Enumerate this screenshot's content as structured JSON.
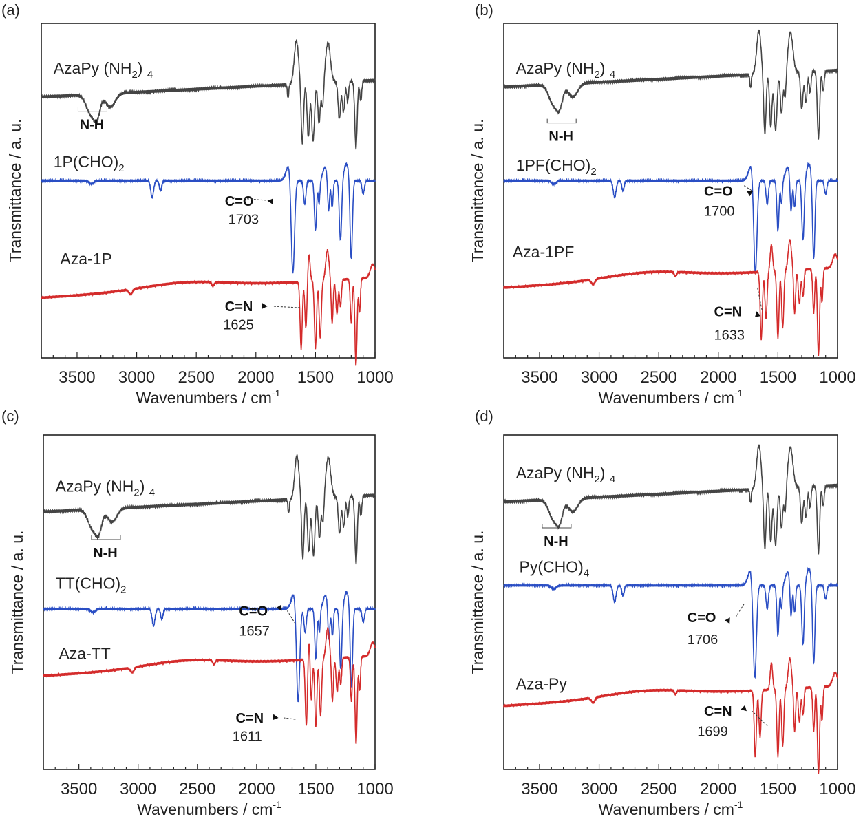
{
  "chart_data": [
    {
      "type": "line",
      "panel_label": "(a)",
      "xlabel": "Wavenumbers / cm",
      "xlabel_sup": "-1",
      "ylabel": "Transmittance / a. u.",
      "xlim": [
        3800,
        1000
      ],
      "xticks": [
        "3500",
        "3000",
        "2500",
        "2000",
        "1500",
        "1000"
      ],
      "series": [
        {
          "name": "AzaPy (NH2)4",
          "color": "#444444",
          "baseline": 0.19,
          "points": [
            [
              3800,
              0.19
            ],
            [
              3550,
              0.2
            ],
            [
              3400,
              0.25
            ],
            [
              3350,
              0.3
            ],
            [
              3300,
              0.24
            ],
            [
              3250,
              0.27
            ],
            [
              3150,
              0.22
            ],
            [
              3000,
              0.2
            ],
            [
              2500,
              0.19
            ],
            [
              2000,
              0.18
            ],
            [
              1800,
              0.17
            ],
            [
              1720,
              0.2
            ],
            [
              1690,
              0.08
            ],
            [
              1660,
              0.03
            ],
            [
              1640,
              0.1
            ],
            [
              1620,
              0.35
            ],
            [
              1600,
              0.15
            ],
            [
              1580,
              0.3
            ],
            [
              1560,
              0.15
            ],
            [
              1540,
              0.32
            ],
            [
              1520,
              0.16
            ],
            [
              1500,
              0.25
            ],
            [
              1470,
              0.12
            ],
            [
              1440,
              0.22
            ],
            [
              1400,
              0.06
            ],
            [
              1370,
              0.08
            ],
            [
              1340,
              0.2
            ],
            [
              1300,
              0.12
            ],
            [
              1280,
              0.23
            ],
            [
              1250,
              0.15
            ],
            [
              1230,
              0.1
            ],
            [
              1200,
              0.24
            ],
            [
              1180,
              0.12
            ],
            [
              1160,
              0.33
            ],
            [
              1140,
              0.15
            ],
            [
              1120,
              0.2
            ],
            [
              1080,
              0.22
            ],
            [
              1040,
              0.19
            ],
            [
              1000,
              0.17
            ]
          ]
        },
        {
          "name": "1P(CHO)2",
          "color": "#2a4ec4",
          "baseline": 0.44,
          "points": [
            [
              3800,
              0.44
            ],
            [
              3400,
              0.44
            ],
            [
              3370,
              0.46
            ],
            [
              3300,
              0.44
            ],
            [
              2900,
              0.44
            ],
            [
              2880,
              0.48
            ],
            [
              2860,
              0.45
            ],
            [
              2820,
              0.47
            ],
            [
              2700,
              0.44
            ],
            [
              2000,
              0.43
            ],
            [
              1800,
              0.42
            ],
            [
              1720,
              0.4
            ],
            [
              1700,
              0.6
            ],
            [
              1690,
              0.72
            ],
            [
              1670,
              0.55
            ],
            [
              1640,
              0.46
            ],
            [
              1600,
              0.5
            ],
            [
              1560,
              0.47
            ],
            [
              1530,
              0.58
            ],
            [
              1500,
              0.45
            ],
            [
              1480,
              0.6
            ],
            [
              1460,
              0.5
            ],
            [
              1440,
              0.58
            ],
            [
              1420,
              0.42
            ],
            [
              1400,
              0.55
            ],
            [
              1380,
              0.48
            ],
            [
              1360,
              0.52
            ],
            [
              1340,
              0.44
            ],
            [
              1320,
              0.55
            ],
            [
              1300,
              0.46
            ],
            [
              1280,
              0.62
            ],
            [
              1250,
              0.47
            ],
            [
              1220,
              0.5
            ],
            [
              1200,
              0.42
            ],
            [
              1180,
              0.55
            ],
            [
              1160,
              0.7
            ],
            [
              1140,
              0.5
            ],
            [
              1100,
              0.45
            ],
            [
              1060,
              0.48
            ],
            [
              1030,
              0.44
            ],
            [
              1000,
              0.45
            ]
          ]
        },
        {
          "name": "Aza-1P",
          "color": "#d42b2b",
          "baseline": 0.68,
          "points": [
            [
              3800,
              0.68
            ],
            [
              3500,
              0.67
            ],
            [
              3200,
              0.66
            ],
            [
              3050,
              0.67
            ],
            [
              2900,
              0.66
            ],
            [
              2500,
              0.64
            ],
            [
              2350,
              0.62
            ],
            [
              2100,
              0.61
            ],
            [
              1900,
              0.6
            ],
            [
              1750,
              0.58
            ],
            [
              1680,
              0.6
            ],
            [
              1650,
              0.58
            ],
            [
              1630,
              0.62
            ],
            [
              1615,
              0.78
            ],
            [
              1600,
              0.88
            ],
            [
              1580,
              0.7
            ],
            [
              1560,
              0.82
            ],
            [
              1540,
              0.6
            ],
            [
              1520,
              0.75
            ],
            [
              1500,
              0.62
            ],
            [
              1480,
              0.85
            ],
            [
              1460,
              0.6
            ],
            [
              1440,
              0.72
            ],
            [
              1420,
              0.58
            ],
            [
              1400,
              0.7
            ],
            [
              1380,
              0.6
            ],
            [
              1360,
              0.75
            ],
            [
              1340,
              0.6
            ],
            [
              1320,
              0.7
            ],
            [
              1300,
              0.58
            ],
            [
              1280,
              0.65
            ],
            [
              1260,
              0.6
            ],
            [
              1240,
              0.58
            ],
            [
              1220,
              0.62
            ],
            [
              1200,
              0.6
            ],
            [
              1180,
              0.72
            ],
            [
              1160,
              0.85
            ],
            [
              1140,
              0.65
            ],
            [
              1120,
              0.6
            ],
            [
              1080,
              0.6
            ],
            [
              1040,
              0.58
            ],
            [
              1000,
              0.56
            ]
          ]
        }
      ],
      "labels": [
        {
          "text": "AzaPy (NH",
          "sub": "2",
          "after": ") ",
          "sub2": "4",
          "x": 3700,
          "y": 0.12,
          "bold": false
        },
        {
          "text": "1P(CHO)",
          "sub": "2",
          "x": 3700,
          "y": 0.36,
          "bold": false
        },
        {
          "text": "Aza-1P",
          "x": 3650,
          "y": 0.6,
          "bold": false
        }
      ],
      "annotations": [
        {
          "label": "N-H",
          "bracket": true
        },
        {
          "label": "C=O",
          "value": "1703"
        },
        {
          "label": "C=N",
          "value": "1625"
        }
      ]
    },
    {
      "type": "line",
      "panel_label": "(b)",
      "xlabel": "Wavenumbers / cm",
      "xlabel_sup": "-1",
      "ylabel": "Transmittance / a. u.",
      "xlim": [
        3800,
        1000
      ],
      "xticks": [
        "3500",
        "3000",
        "2500",
        "2000",
        "1500",
        "1000"
      ],
      "series": [
        {
          "name": "AzaPy (NH2)4",
          "color": "#444444"
        },
        {
          "name": "1PF(CHO)2",
          "color": "#2a4ec4"
        },
        {
          "name": "Aza-1PF",
          "color": "#d42b2b"
        }
      ],
      "labels": [
        {
          "text": "AzaPy (NH",
          "sub": "2",
          "after": ") ",
          "sub2": "4"
        },
        {
          "text": "1PF(CHO)",
          "sub": "2"
        },
        {
          "text": "Aza-1PF"
        }
      ],
      "annotations": [
        {
          "label": "N-H",
          "bracket": true
        },
        {
          "label": "C=O",
          "value": "1700"
        },
        {
          "label": "C=N",
          "value": "1633"
        }
      ]
    },
    {
      "type": "line",
      "panel_label": "(c)",
      "xlabel": "Wavenumbers / cm",
      "xlabel_sup": "-1",
      "ylabel": "Transmittance / a. u.",
      "xlim": [
        3800,
        1000
      ],
      "xticks": [
        "3500",
        "3000",
        "2500",
        "2000",
        "1500",
        "1000"
      ],
      "series": [
        {
          "name": "AzaPy (NH2)4",
          "color": "#444444"
        },
        {
          "name": "TT(CHO)2",
          "color": "#2a4ec4"
        },
        {
          "name": "Aza-TT",
          "color": "#d42b2b"
        }
      ],
      "labels": [
        {
          "text": "AzaPy (NH",
          "sub": "2",
          "after": ") ",
          "sub2": "4"
        },
        {
          "text": "TT(CHO)",
          "sub": "2"
        },
        {
          "text": "Aza-TT"
        }
      ],
      "annotations": [
        {
          "label": "N-H",
          "bracket": true
        },
        {
          "label": "C=O",
          "value": "1657"
        },
        {
          "label": "C=N",
          "value": "1611"
        }
      ]
    },
    {
      "type": "line",
      "panel_label": "(d)",
      "xlabel": "Wavenumbers / cm",
      "xlabel_sup": "-1",
      "ylabel": "Transmittance / a. u.",
      "xlim": [
        3800,
        1000
      ],
      "xticks": [
        "3500",
        "3000",
        "2500",
        "2000",
        "1500",
        "1000"
      ],
      "series": [
        {
          "name": "AzaPy (NH2)4",
          "color": "#444444"
        },
        {
          "name": "Py(CHO)4",
          "color": "#2a4ec4"
        },
        {
          "name": "Aza-Py",
          "color": "#d42b2b"
        }
      ],
      "labels": [
        {
          "text": "AzaPy (NH",
          "sub": "2",
          "after": ") ",
          "sub2": "4"
        },
        {
          "text": "Py(CHO)",
          "sub": "4"
        },
        {
          "text": "Aza-Py"
        }
      ],
      "annotations": [
        {
          "label": "N-H",
          "bracket": true
        },
        {
          "label": "C=O",
          "value": "1706"
        },
        {
          "label": "C=N",
          "value": "1699"
        }
      ]
    }
  ]
}
